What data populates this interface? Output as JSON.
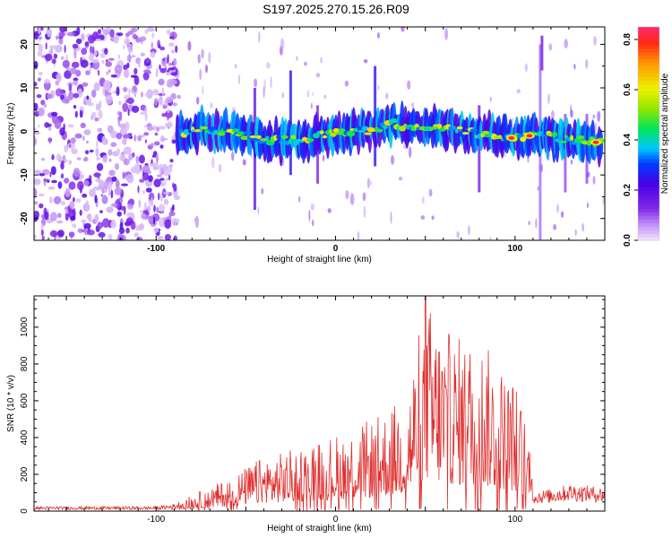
{
  "chart_data": [
    {
      "type": "heatmap",
      "title": "S197.2025.270.15.26.R09",
      "xlabel": "Height of straight line (km)",
      "ylabel": "Frequency (Hz)",
      "xlim": [
        -168,
        150
      ],
      "ylim": [
        -25,
        24
      ],
      "xticks": [
        -100,
        0,
        100
      ],
      "yticks": [
        -20,
        -10,
        0,
        10,
        20
      ],
      "colorbar": {
        "label": "Normalized spectral amplitude",
        "range": [
          0.0,
          0.85
        ],
        "ticks": [
          0.0,
          0.2,
          0.4,
          0.6,
          0.8
        ]
      },
      "ridge_frequency_hz": [
        [
          -88,
          -1
        ],
        [
          -80,
          0.5
        ],
        [
          -70,
          0
        ],
        [
          -60,
          0
        ],
        [
          -50,
          -1
        ],
        [
          -40,
          -2
        ],
        [
          -30,
          -2
        ],
        [
          -20,
          -2
        ],
        [
          -10,
          -1
        ],
        [
          0,
          -0.5
        ],
        [
          10,
          0
        ],
        [
          20,
          0
        ],
        [
          30,
          2
        ],
        [
          40,
          1
        ],
        [
          50,
          1
        ],
        [
          60,
          1
        ],
        [
          70,
          0
        ],
        [
          80,
          -0.5
        ],
        [
          90,
          -1
        ],
        [
          100,
          -1.5
        ],
        [
          110,
          -1
        ],
        [
          120,
          -1
        ],
        [
          130,
          -2
        ],
        [
          140,
          -2
        ],
        [
          145,
          -2.5
        ]
      ],
      "peak_amplitude_locations": [
        [
          98,
          -1.5
        ],
        [
          108,
          -1
        ],
        [
          145,
          -2.5
        ]
      ]
    },
    {
      "type": "line",
      "xlabel": "Height of straight line (km)",
      "ylabel": "SNR (10 * v/v)",
      "xlim": [
        -168,
        150
      ],
      "ylim": [
        0,
        1170
      ],
      "xticks": [
        -100,
        0,
        100
      ],
      "yticks": [
        0,
        200,
        400,
        600,
        800,
        1000
      ],
      "color": "#e03030",
      "envelope": {
        "x": [
          -168,
          -100,
          -90,
          -80,
          -70,
          -60,
          -50,
          -40,
          -30,
          -20,
          -10,
          0,
          10,
          20,
          30,
          40,
          50,
          60,
          70,
          80,
          90,
          100,
          108,
          110,
          120,
          130,
          140,
          150
        ],
        "y": [
          25,
          25,
          40,
          90,
          130,
          180,
          240,
          300,
          320,
          350,
          390,
          420,
          460,
          500,
          560,
          650,
          1170,
          1000,
          950,
          960,
          820,
          720,
          420,
          110,
          120,
          150,
          140,
          130
        ]
      }
    }
  ]
}
